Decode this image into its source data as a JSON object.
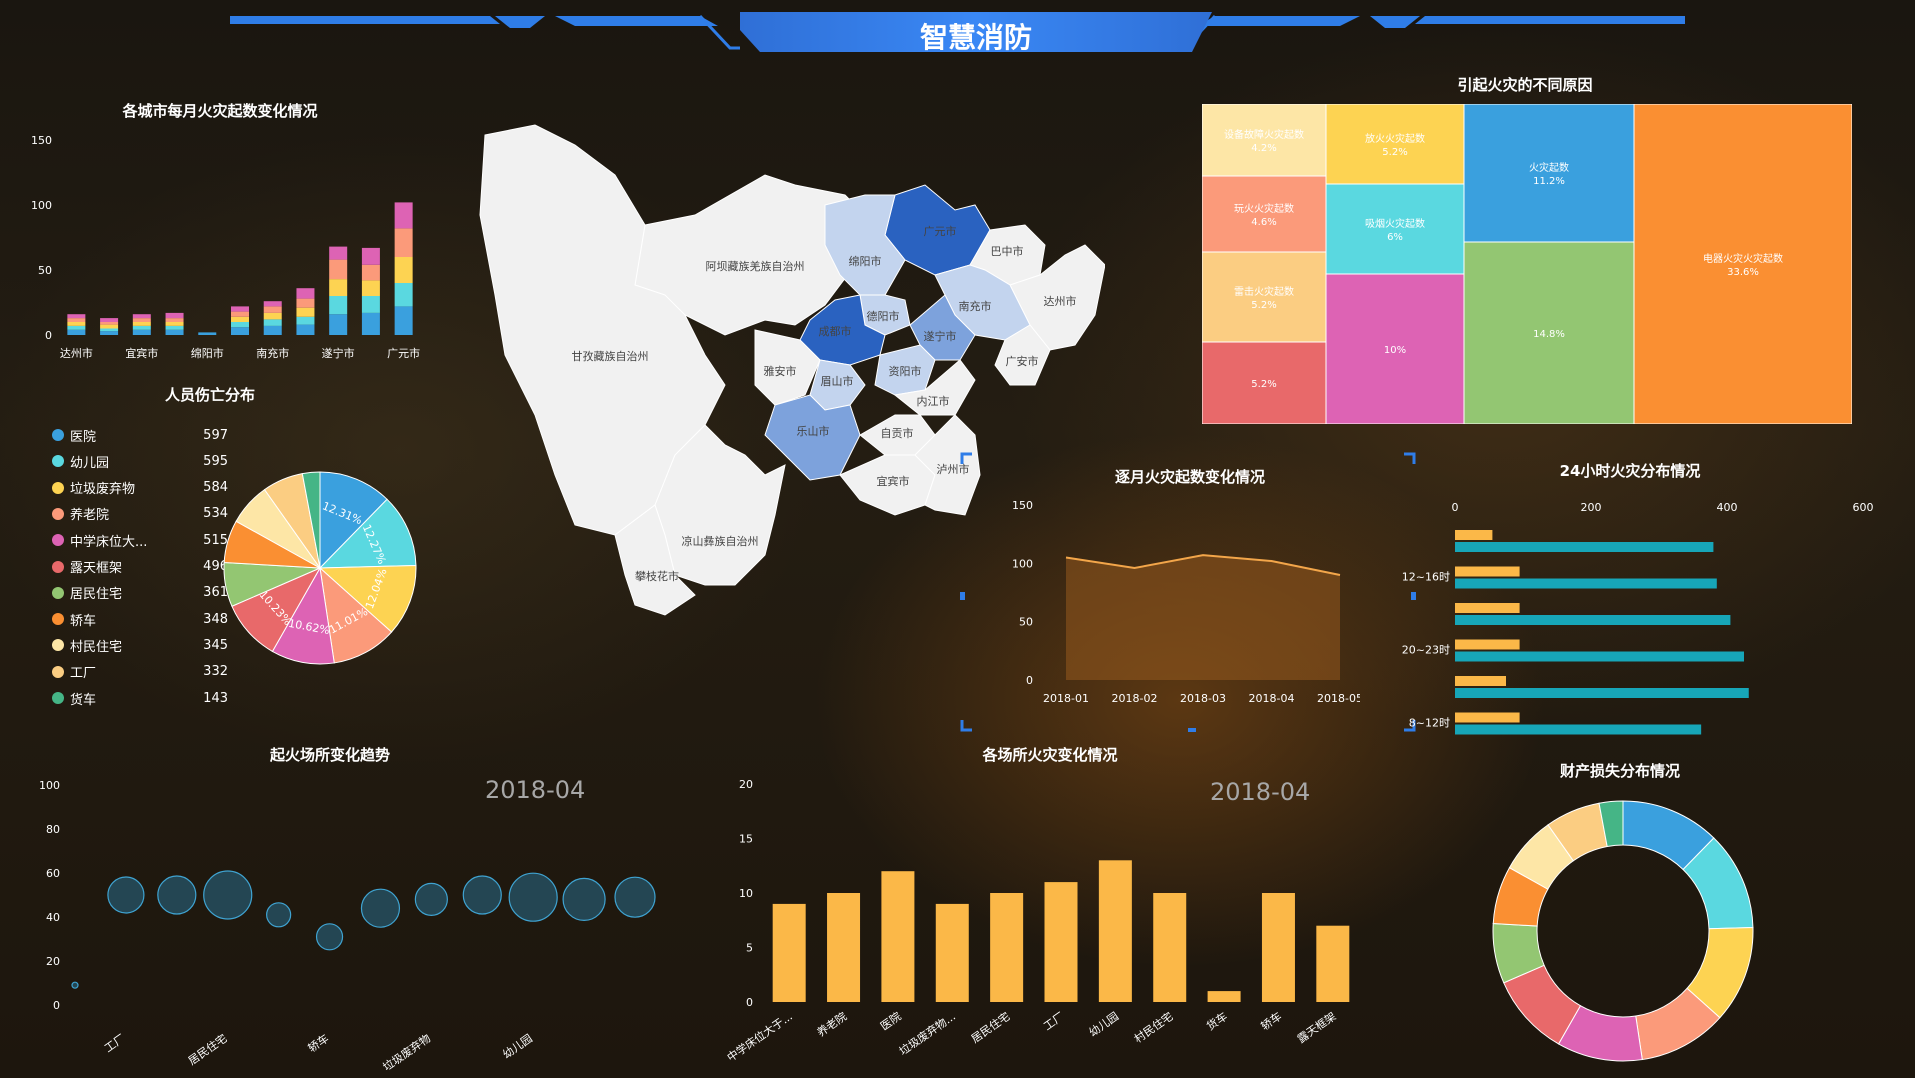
{
  "header": {
    "title": "智慧消防"
  },
  "panels": {
    "monthly_by_city": "各城市每月火灾起数变化情况",
    "casualty": "人员伤亡分布",
    "causes": "引起火灾的不同原因",
    "monthly_trend": "逐月火灾起数变化情况",
    "hourly": "24小时火灾分布情况",
    "place_trend": "起火场所变化趋势",
    "place_fire": "各场所火灾变化情况",
    "property_loss": "财产损失分布情况",
    "place_trend_date": "2018-04",
    "place_fire_date": "2018-04"
  },
  "colors": {
    "blue": "#3aa0de",
    "cyan": "#5ad8e0",
    "yellow": "#fdd352",
    "salmon": "#fb9a7a",
    "magenta": "#dd63b4",
    "red": "#e8696a",
    "green": "#93c672",
    "orange": "#fa8f32",
    "cream": "#fde6a6",
    "peach": "#fbcd82",
    "teal": "#45b586",
    "accent": "#2f7de8"
  },
  "chart_data": [
    {
      "id": "monthly_by_city",
      "type": "bar",
      "stacked": true,
      "categories": [
        "达州市",
        "",
        "宜宾市",
        "",
        "绵阳市",
        "",
        "南充市",
        "",
        "遂宁市",
        "",
        "广元市"
      ],
      "tick_labels": [
        "达州市",
        "宜宾市",
        "绵阳市",
        "南充市",
        "遂宁市",
        "广元市"
      ],
      "ylim": [
        0,
        150
      ],
      "yticks": [
        0,
        50,
        100,
        150
      ],
      "series": [
        {
          "color": "#3aa0de",
          "values": [
            4,
            3,
            4,
            4,
            2,
            6,
            7,
            8,
            16,
            17,
            22
          ]
        },
        {
          "color": "#5ad8e0",
          "values": [
            3,
            2,
            3,
            3,
            0,
            4,
            5,
            6,
            14,
            13,
            18
          ]
        },
        {
          "color": "#fdd352",
          "values": [
            3,
            3,
            3,
            3,
            0,
            4,
            5,
            7,
            13,
            12,
            20
          ]
        },
        {
          "color": "#fb9a7a",
          "values": [
            3,
            2,
            3,
            3,
            0,
            4,
            5,
            7,
            15,
            12,
            22
          ]
        },
        {
          "color": "#dd63b4",
          "values": [
            3,
            3,
            3,
            4,
            0,
            4,
            4,
            8,
            10,
            13,
            20
          ]
        }
      ]
    },
    {
      "id": "casualty",
      "type": "pie",
      "legend": [
        {
          "name": "医院",
          "value": "597",
          "color": "#3aa0de"
        },
        {
          "name": "幼儿园",
          "value": "595",
          "color": "#5ad8e0"
        },
        {
          "name": "垃圾废弃物",
          "value": "584",
          "color": "#fdd352"
        },
        {
          "name": "养老院",
          "value": "534",
          "color": "#fb9a7a"
        },
        {
          "name": "中学床位大...",
          "value": "515",
          "color": "#dd63b4"
        },
        {
          "name": "露天框架",
          "value": "496",
          "color": "#e8696a"
        },
        {
          "name": "居民住宅",
          "value": "361",
          "color": "#93c672"
        },
        {
          "name": "轿车",
          "value": "348",
          "color": "#fa8f32"
        },
        {
          "name": "村民住宅",
          "value": "345",
          "color": "#fde6a6"
        },
        {
          "name": "工厂",
          "value": "332",
          "color": "#fbcd82"
        },
        {
          "name": "货车",
          "value": "143",
          "color": "#45b586"
        }
      ],
      "values": [
        597,
        595,
        584,
        534,
        515,
        496,
        361,
        348,
        345,
        332,
        143
      ],
      "slice_labels": [
        "12.31%",
        "12.27%",
        "12.04%",
        "11.01%",
        "10.62%",
        "10.23%",
        "",
        "",
        "",
        "",
        ""
      ]
    },
    {
      "id": "causes",
      "type": "treemap",
      "cells": [
        {
          "name": "设备故障火灾起数",
          "pct": "4.2%",
          "color": "#fde6a6"
        },
        {
          "name": "玩火火灾起数",
          "pct": "4.6%",
          "color": "#fb9a7a"
        },
        {
          "name": "雷击火灾起数",
          "pct": "5.2%",
          "color": "#fbcd82"
        },
        {
          "name": "",
          "pct": "5.2%",
          "color": "#e8696a"
        },
        {
          "name": "放火火灾起数",
          "pct": "5.2%",
          "color": "#fdd352"
        },
        {
          "name": "吸烟火灾起数",
          "pct": "6%",
          "color": "#5ad8e0"
        },
        {
          "name": "",
          "pct": "10%",
          "color": "#dd63b4"
        },
        {
          "name": "火灾起数",
          "pct": "11.2%",
          "color": "#3aa0de"
        },
        {
          "name": "",
          "pct": "14.8%",
          "color": "#93c672"
        },
        {
          "name": "电器火灾火灾起数",
          "pct": "33.6%",
          "color": "#fa8f32"
        }
      ]
    },
    {
      "id": "monthly_trend",
      "type": "area",
      "x": [
        "2018-01",
        "2018-02",
        "2018-03",
        "2018-04",
        "2018-05"
      ],
      "values": [
        105,
        96,
        107,
        102,
        90
      ],
      "ylim": [
        0,
        150
      ],
      "yticks": [
        0,
        50,
        100,
        150
      ]
    },
    {
      "id": "hourly",
      "type": "bar",
      "orientation": "horizontal",
      "xlim": [
        0,
        600
      ],
      "xticks": [
        0,
        200,
        400,
        600
      ],
      "categories": [
        "",
        "12~16时",
        "",
        "20~23时",
        "",
        "8~12时"
      ],
      "series": [
        {
          "color": "#fbb848",
          "values": [
            55,
            95,
            95,
            95,
            75,
            95
          ]
        },
        {
          "color": "#17a6b8",
          "values": [
            380,
            385,
            405,
            425,
            432,
            362
          ]
        }
      ]
    },
    {
      "id": "place_trend",
      "type": "scatter",
      "ylim": [
        0,
        100
      ],
      "yticks": [
        0,
        20,
        40,
        60,
        80,
        100
      ],
      "categories": [
        "",
        "工厂",
        "",
        "居民住宅",
        "",
        "轿车",
        "",
        "垃圾废弃物",
        "",
        "幼儿园",
        "",
        ""
      ],
      "values": [
        9,
        50,
        50,
        50,
        41,
        31,
        44,
        48,
        50,
        49,
        48,
        49
      ],
      "sizes": [
        3,
        18,
        19,
        24,
        12,
        13,
        19,
        16,
        19,
        24,
        21,
        20
      ]
    },
    {
      "id": "place_fire",
      "type": "bar",
      "ylim": [
        0,
        20
      ],
      "yticks": [
        0,
        5,
        10,
        15,
        20
      ],
      "categories": [
        "中学床位大于...",
        "养老院",
        "医院",
        "垃圾废弃物...",
        "居民住宅",
        "工厂",
        "幼儿园",
        "村民住宅",
        "货车",
        "轿车",
        "露天框架"
      ],
      "values": [
        9,
        10,
        12,
        9,
        10,
        11,
        13,
        10,
        1,
        10,
        7
      ]
    },
    {
      "id": "property_loss",
      "type": "pie",
      "donut": true,
      "values": [
        597,
        595,
        584,
        534,
        515,
        496,
        361,
        348,
        345,
        332,
        143
      ],
      "colors": [
        "#3aa0de",
        "#5ad8e0",
        "#fdd352",
        "#fb9a7a",
        "#dd63b4",
        "#e8696a",
        "#93c672",
        "#fa8f32",
        "#fde6a6",
        "#fbcd82",
        "#45b586"
      ]
    }
  ],
  "map": {
    "regions": [
      {
        "name": "阿坝藏族羌族自治州",
        "level": 0
      },
      {
        "name": "甘孜藏族自治州",
        "level": 0
      },
      {
        "name": "凉山彝族自治州",
        "level": 0
      },
      {
        "name": "攀枝花市",
        "level": 0
      },
      {
        "name": "广元市",
        "level": 3
      },
      {
        "name": "巴中市",
        "level": 0
      },
      {
        "name": "绵阳市",
        "level": 1
      },
      {
        "name": "南充市",
        "level": 1
      },
      {
        "name": "达州市",
        "level": 0
      },
      {
        "name": "德阳市",
        "level": 1
      },
      {
        "name": "成都市",
        "level": 3
      },
      {
        "name": "遂宁市",
        "level": 2
      },
      {
        "name": "广安市",
        "level": 0
      },
      {
        "name": "雅安市",
        "level": 0
      },
      {
        "name": "眉山市",
        "level": 1
      },
      {
        "name": "资阳市",
        "level": 1
      },
      {
        "name": "内江市",
        "level": 0
      },
      {
        "name": "乐山市",
        "level": 2
      },
      {
        "name": "自贡市",
        "level": 0
      },
      {
        "name": "宜宾市",
        "level": 0
      },
      {
        "name": "泸州市",
        "level": 0
      }
    ]
  }
}
